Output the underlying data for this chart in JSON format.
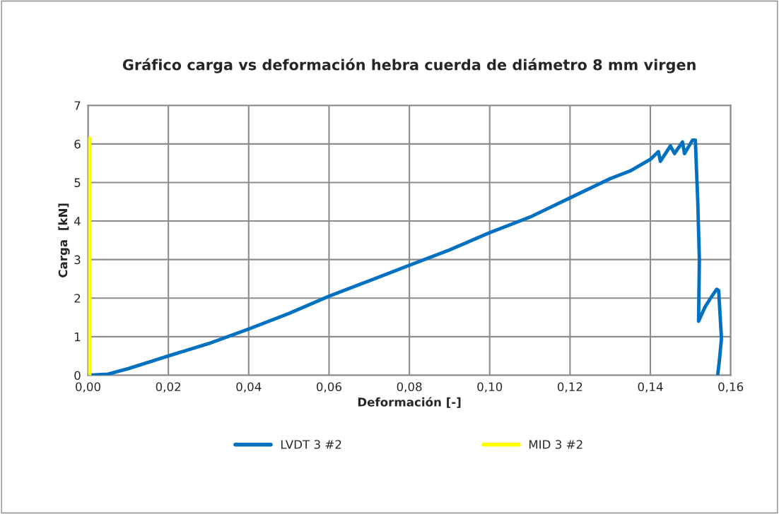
{
  "chart_data": {
    "type": "line",
    "title": "Gráfico carga vs deformación hebra cuerda de diámetro 8 mm virgen",
    "xlabel": "Deformación [-]",
    "ylabel": "Carga  [kN]",
    "series": [
      {
        "name": "LVDT 3 #2",
        "color": "#0070c0",
        "x": [
          0,
          0.005,
          0.01,
          0.02,
          0.03,
          0.04,
          0.05,
          0.06,
          0.07,
          0.08,
          0.09,
          0.1,
          0.11,
          0.12,
          0.13,
          0.135,
          0.14,
          0.142,
          0.1425,
          0.145,
          0.146,
          0.148,
          0.1485,
          0.1505,
          0.1512,
          0.1518,
          0.1522,
          0.152,
          0.1535,
          0.155,
          0.1565,
          0.157,
          0.1577,
          0.1572,
          0.1568
        ],
        "values": [
          0,
          0.03,
          0.17,
          0.5,
          0.82,
          1.2,
          1.6,
          2.05,
          2.45,
          2.85,
          3.25,
          3.7,
          4.1,
          4.6,
          5.1,
          5.3,
          5.6,
          5.8,
          5.55,
          5.95,
          5.75,
          6.05,
          5.75,
          6.1,
          6.1,
          4.5,
          3.0,
          1.4,
          1.75,
          2.0,
          2.23,
          2.2,
          0.95,
          0.4,
          0.03
        ]
      },
      {
        "name": "MID 3 #2",
        "color": "#ffff00",
        "x": [
          0.0004,
          0.0004,
          0.0004,
          0.0004,
          0.0004,
          0.0004,
          0.0004,
          0.0004
        ],
        "values": [
          0,
          1,
          2,
          3,
          4,
          5,
          6,
          6.15
        ]
      }
    ],
    "xlim": [
      0,
      0.16
    ],
    "xticks": [
      {
        "value": 0,
        "label": "0,00"
      },
      {
        "value": 0.02,
        "label": "0,02"
      },
      {
        "value": 0.04,
        "label": "0,04"
      },
      {
        "value": 0.06,
        "label": "0,06"
      },
      {
        "value": 0.08,
        "label": "0,08"
      },
      {
        "value": 0.1,
        "label": "0,10"
      },
      {
        "value": 0.12,
        "label": "0,12"
      },
      {
        "value": 0.14,
        "label": "0,14"
      },
      {
        "value": 0.16,
        "label": "0,16"
      }
    ],
    "ylim": [
      0,
      7
    ],
    "yticks": [
      0,
      1,
      2,
      3,
      4,
      5,
      6,
      7
    ],
    "grid": true,
    "legend": "bottom"
  }
}
